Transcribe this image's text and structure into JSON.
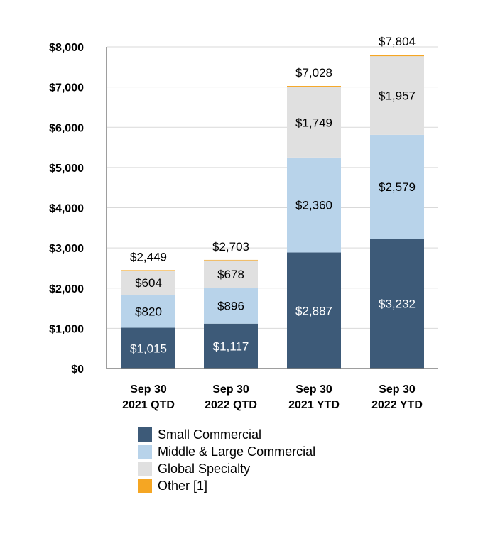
{
  "chart_data": {
    "type": "bar",
    "stacked": true,
    "categories": [
      [
        "Sep 30",
        "2021 QTD"
      ],
      [
        "Sep 30",
        "2022 QTD"
      ],
      [
        "Sep 30",
        "2021 YTD"
      ],
      [
        "Sep 30",
        "2022 YTD"
      ]
    ],
    "series": [
      {
        "name": "Small Commercial",
        "color": "#3d5a78",
        "label_color": "#ffffff",
        "values": [
          1015,
          1117,
          2887,
          3232
        ],
        "labels": [
          "$1,015",
          "$1,117",
          "$2,887",
          "$3,232"
        ]
      },
      {
        "name": "Middle & Large Commercial",
        "color": "#b8d3ea",
        "label_color": "#000000",
        "values": [
          820,
          896,
          2360,
          2579
        ],
        "labels": [
          "$820",
          "$896",
          "$2,360",
          "$2,579"
        ]
      },
      {
        "name": "Global Specialty",
        "color": "#e0e0e0",
        "label_color": "#000000",
        "values": [
          604,
          678,
          1749,
          1957
        ],
        "labels": [
          "$604",
          "$678",
          "$1,749",
          "$1,957"
        ]
      },
      {
        "name": "Other [1]",
        "color": "#f5a623",
        "label_color": "#000000",
        "values": [
          10,
          12,
          32,
          36
        ],
        "labels": [
          "",
          "",
          "",
          ""
        ]
      }
    ],
    "totals": [
      2449,
      2703,
      7028,
      7804
    ],
    "total_labels": [
      "$2,449",
      "$2,703",
      "$7,028",
      "$7,804"
    ],
    "yticks": [
      0,
      1000,
      2000,
      3000,
      4000,
      5000,
      6000,
      7000,
      8000
    ],
    "ytick_labels": [
      "$0",
      "$1,000",
      "$2,000",
      "$3,000",
      "$4,000",
      "$5,000",
      "$6,000",
      "$7,000",
      "$8,000"
    ],
    "ylim": [
      0,
      8000
    ],
    "grid": true,
    "legend_position": "bottom",
    "title": "",
    "xlabel": "",
    "ylabel": ""
  }
}
